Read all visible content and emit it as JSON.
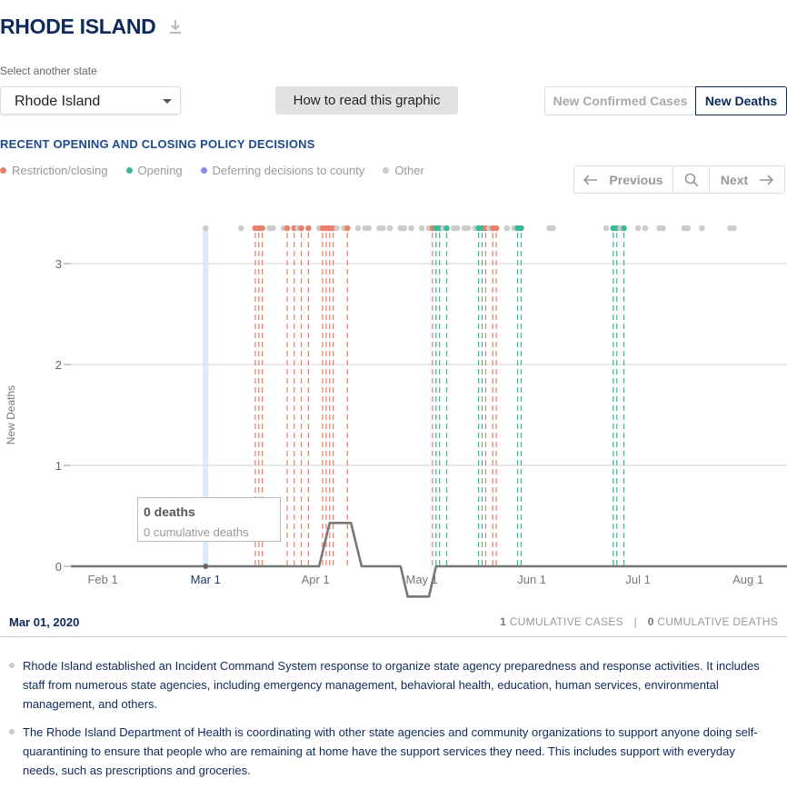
{
  "header": {
    "title": "RHODE ISLAND",
    "download_icon": "download-icon"
  },
  "state_selector": {
    "label": "Select another state",
    "value": "Rhode Island"
  },
  "how_to_button": "How to read this graphic",
  "metric_toggle": {
    "options": [
      "New Confirmed Cases",
      "New Deaths"
    ],
    "selected": "New Deaths"
  },
  "policy": {
    "heading": "RECENT OPENING AND CLOSING POLICY DECISIONS",
    "legend": [
      {
        "label": "Restriction/closing",
        "color": "#e8806a"
      },
      {
        "label": "Opening",
        "color": "#3bb89a"
      },
      {
        "label": "Deferring decisions to county",
        "color": "#8a8ee8"
      },
      {
        "label": "Other",
        "color": "#cccccc"
      }
    ]
  },
  "nav": {
    "previous": "Previous",
    "next": "Next",
    "search_icon": "search-icon"
  },
  "chart_data": {
    "type": "line",
    "ylabel": "New Deaths",
    "ylim": [
      0,
      3.3
    ],
    "yticks": [
      "0",
      "1",
      "2",
      "3"
    ],
    "xlim": [
      "2020-01-23",
      "2020-08-12"
    ],
    "xticks": [
      {
        "date": "2020-02-01",
        "label": "Feb 1"
      },
      {
        "date": "2020-03-01",
        "label": "Mar 1"
      },
      {
        "date": "2020-04-01",
        "label": "Apr 1"
      },
      {
        "date": "2020-05-01",
        "label": "May 1"
      },
      {
        "date": "2020-06-01",
        "label": "Jun 1"
      },
      {
        "date": "2020-07-01",
        "label": "Jul 1"
      },
      {
        "date": "2020-08-01",
        "label": "Aug 1"
      }
    ],
    "selected_date": "2020-03-01",
    "series": [
      {
        "values": [
          [
            "2020-01-23",
            0
          ],
          [
            "2020-04-02",
            0
          ],
          [
            "2020-04-05",
            0.43
          ],
          [
            "2020-04-11",
            0.43
          ],
          [
            "2020-04-14",
            0
          ],
          [
            "2020-04-25",
            0
          ],
          [
            "2020-04-27",
            -0.3
          ],
          [
            "2020-05-03",
            -0.3
          ],
          [
            "2020-05-05",
            0
          ],
          [
            "2020-08-12",
            0
          ]
        ]
      }
    ],
    "policy_events": [
      {
        "date": "2020-03-01",
        "category": "other"
      },
      {
        "date": "2020-03-11",
        "category": "other"
      },
      {
        "date": "2020-03-15",
        "category": "restriction"
      },
      {
        "date": "2020-03-16",
        "category": "restriction"
      },
      {
        "date": "2020-03-17",
        "category": "restriction"
      },
      {
        "date": "2020-03-19",
        "category": "other"
      },
      {
        "date": "2020-03-20",
        "category": "other"
      },
      {
        "date": "2020-03-23",
        "category": "other"
      },
      {
        "date": "2020-03-24",
        "category": "restriction"
      },
      {
        "date": "2020-03-26",
        "category": "restriction"
      },
      {
        "date": "2020-03-27",
        "category": "other"
      },
      {
        "date": "2020-03-28",
        "category": "restriction"
      },
      {
        "date": "2020-03-30",
        "category": "restriction"
      },
      {
        "date": "2020-04-02",
        "category": "other"
      },
      {
        "date": "2020-04-03",
        "category": "restriction"
      },
      {
        "date": "2020-04-04",
        "category": "restriction"
      },
      {
        "date": "2020-04-05",
        "category": "restriction"
      },
      {
        "date": "2020-04-06",
        "category": "restriction"
      },
      {
        "date": "2020-04-07",
        "category": "other"
      },
      {
        "date": "2020-04-09",
        "category": "other"
      },
      {
        "date": "2020-04-10",
        "category": "restriction"
      },
      {
        "date": "2020-04-13",
        "category": "other"
      },
      {
        "date": "2020-04-15",
        "category": "other"
      },
      {
        "date": "2020-04-16",
        "category": "other"
      },
      {
        "date": "2020-04-19",
        "category": "other"
      },
      {
        "date": "2020-04-20",
        "category": "other"
      },
      {
        "date": "2020-04-22",
        "category": "other"
      },
      {
        "date": "2020-04-25",
        "category": "other"
      },
      {
        "date": "2020-04-26",
        "category": "other"
      },
      {
        "date": "2020-04-28",
        "category": "other"
      },
      {
        "date": "2020-05-01",
        "category": "other"
      },
      {
        "date": "2020-05-03",
        "category": "other"
      },
      {
        "date": "2020-05-04",
        "category": "restriction"
      },
      {
        "date": "2020-05-05",
        "category": "opening"
      },
      {
        "date": "2020-05-06",
        "category": "opening"
      },
      {
        "date": "2020-05-07",
        "category": "other"
      },
      {
        "date": "2020-05-08",
        "category": "opening"
      },
      {
        "date": "2020-05-10",
        "category": "other"
      },
      {
        "date": "2020-05-11",
        "category": "other"
      },
      {
        "date": "2020-05-13",
        "category": "other"
      },
      {
        "date": "2020-05-14",
        "category": "other"
      },
      {
        "date": "2020-05-16",
        "category": "other"
      },
      {
        "date": "2020-05-17",
        "category": "opening"
      },
      {
        "date": "2020-05-18",
        "category": "opening"
      },
      {
        "date": "2020-05-19",
        "category": "restriction"
      },
      {
        "date": "2020-05-20",
        "category": "other"
      },
      {
        "date": "2020-05-21",
        "category": "restriction"
      },
      {
        "date": "2020-05-22",
        "category": "restriction"
      },
      {
        "date": "2020-05-25",
        "category": "other"
      },
      {
        "date": "2020-05-27",
        "category": "other"
      },
      {
        "date": "2020-05-28",
        "category": "opening"
      },
      {
        "date": "2020-05-29",
        "category": "opening"
      },
      {
        "date": "2020-06-06",
        "category": "other"
      },
      {
        "date": "2020-06-07",
        "category": "other"
      },
      {
        "date": "2020-06-22",
        "category": "other"
      },
      {
        "date": "2020-06-24",
        "category": "opening"
      },
      {
        "date": "2020-06-25",
        "category": "opening"
      },
      {
        "date": "2020-06-26",
        "category": "other"
      },
      {
        "date": "2020-06-27",
        "category": "opening"
      },
      {
        "date": "2020-07-01",
        "category": "other"
      },
      {
        "date": "2020-07-03",
        "category": "other"
      },
      {
        "date": "2020-07-07",
        "category": "other"
      },
      {
        "date": "2020-07-08",
        "category": "other"
      },
      {
        "date": "2020-07-14",
        "category": "other"
      },
      {
        "date": "2020-07-15",
        "category": "other"
      },
      {
        "date": "2020-07-19",
        "category": "other"
      },
      {
        "date": "2020-07-27",
        "category": "other"
      },
      {
        "date": "2020-07-28",
        "category": "other"
      }
    ]
  },
  "tooltip": {
    "title": "0 deaths",
    "subtitle": "0 cumulative deaths"
  },
  "selected_day": {
    "date": "Mar 01, 2020",
    "cumulative_cases_value": "1",
    "cumulative_cases_label": "CUMULATIVE CASES",
    "separator": "|",
    "cumulative_deaths_value": "0",
    "cumulative_deaths_label": "CUMULATIVE DEATHS"
  },
  "notes": [
    "Rhode Island established an Incident Command System response to organize state agency preparedness and response activities. It includes staff from numerous state agencies, including emergency management, behavioral health, education, human services, environmental management, and others.",
    "The Rhode Island Department of Health is coordinating with other state agencies and community organizations to support anyone doing self-quarantining to ensure that people who are remaining at home have the support services they need. This includes support with everyday needs, such as prescriptions and groceries."
  ]
}
